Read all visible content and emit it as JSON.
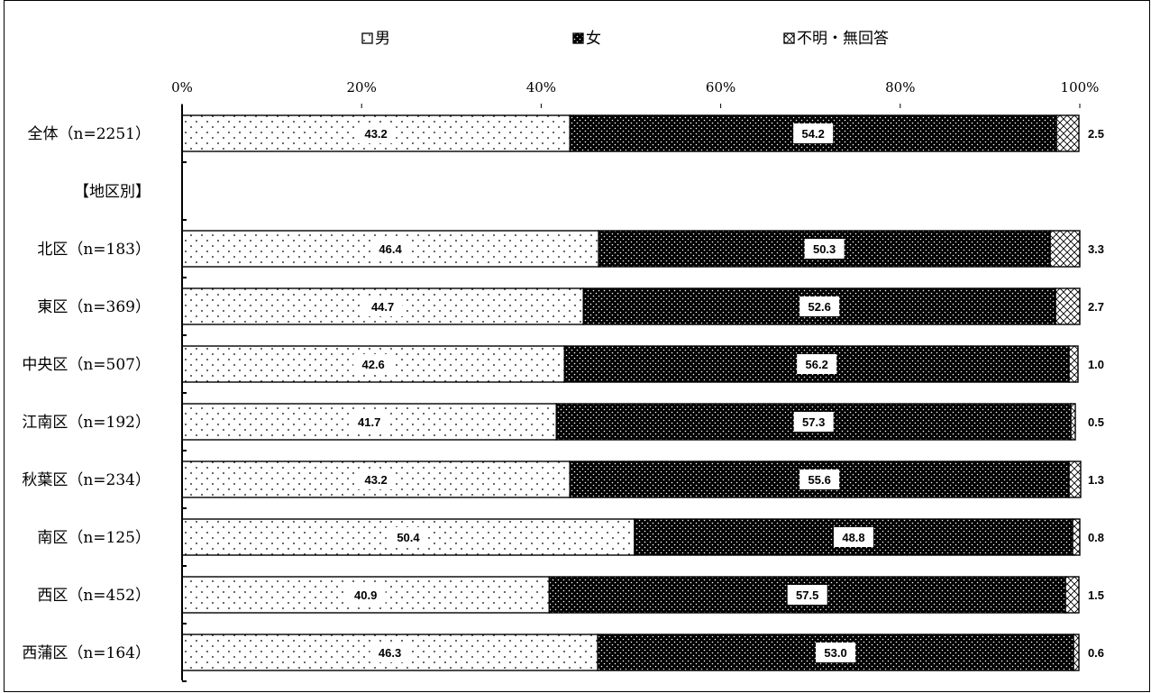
{
  "chart_data": {
    "type": "bar",
    "orientation": "horizontal",
    "stacked": "100%",
    "legend_position": "top",
    "grid": false,
    "xlim": [
      0,
      100
    ],
    "x_ticks": [
      "0%",
      "20%",
      "40%",
      "60%",
      "80%",
      "100%"
    ],
    "rows": [
      {
        "label": "全体（n=2251）",
        "values": [
          43.2,
          54.2,
          2.5
        ]
      },
      {
        "label": "【地区別】",
        "header": true
      },
      {
        "label": "北区（n=183）",
        "values": [
          46.4,
          50.3,
          3.3
        ]
      },
      {
        "label": "東区（n=369）",
        "values": [
          44.7,
          52.6,
          2.7
        ]
      },
      {
        "label": "中央区（n=507）",
        "values": [
          42.6,
          56.2,
          1.0
        ]
      },
      {
        "label": "江南区（n=192）",
        "values": [
          41.7,
          57.3,
          0.5
        ]
      },
      {
        "label": "秋葉区（n=234）",
        "values": [
          43.2,
          55.6,
          1.3
        ]
      },
      {
        "label": "南区（n=125）",
        "values": [
          50.4,
          48.8,
          0.8
        ]
      },
      {
        "label": "西区（n=452）",
        "values": [
          40.9,
          57.5,
          1.5
        ]
      },
      {
        "label": "西蒲区（n=164）",
        "values": [
          46.3,
          53.0,
          0.6
        ]
      }
    ],
    "series": [
      {
        "name": "男",
        "pattern": "light-dots",
        "color": "#ffffff"
      },
      {
        "name": "女",
        "pattern": "dark-dots",
        "color": "#000000"
      },
      {
        "name": "不明・無回答",
        "pattern": "crosshatch",
        "color": "#ffffff"
      }
    ]
  }
}
